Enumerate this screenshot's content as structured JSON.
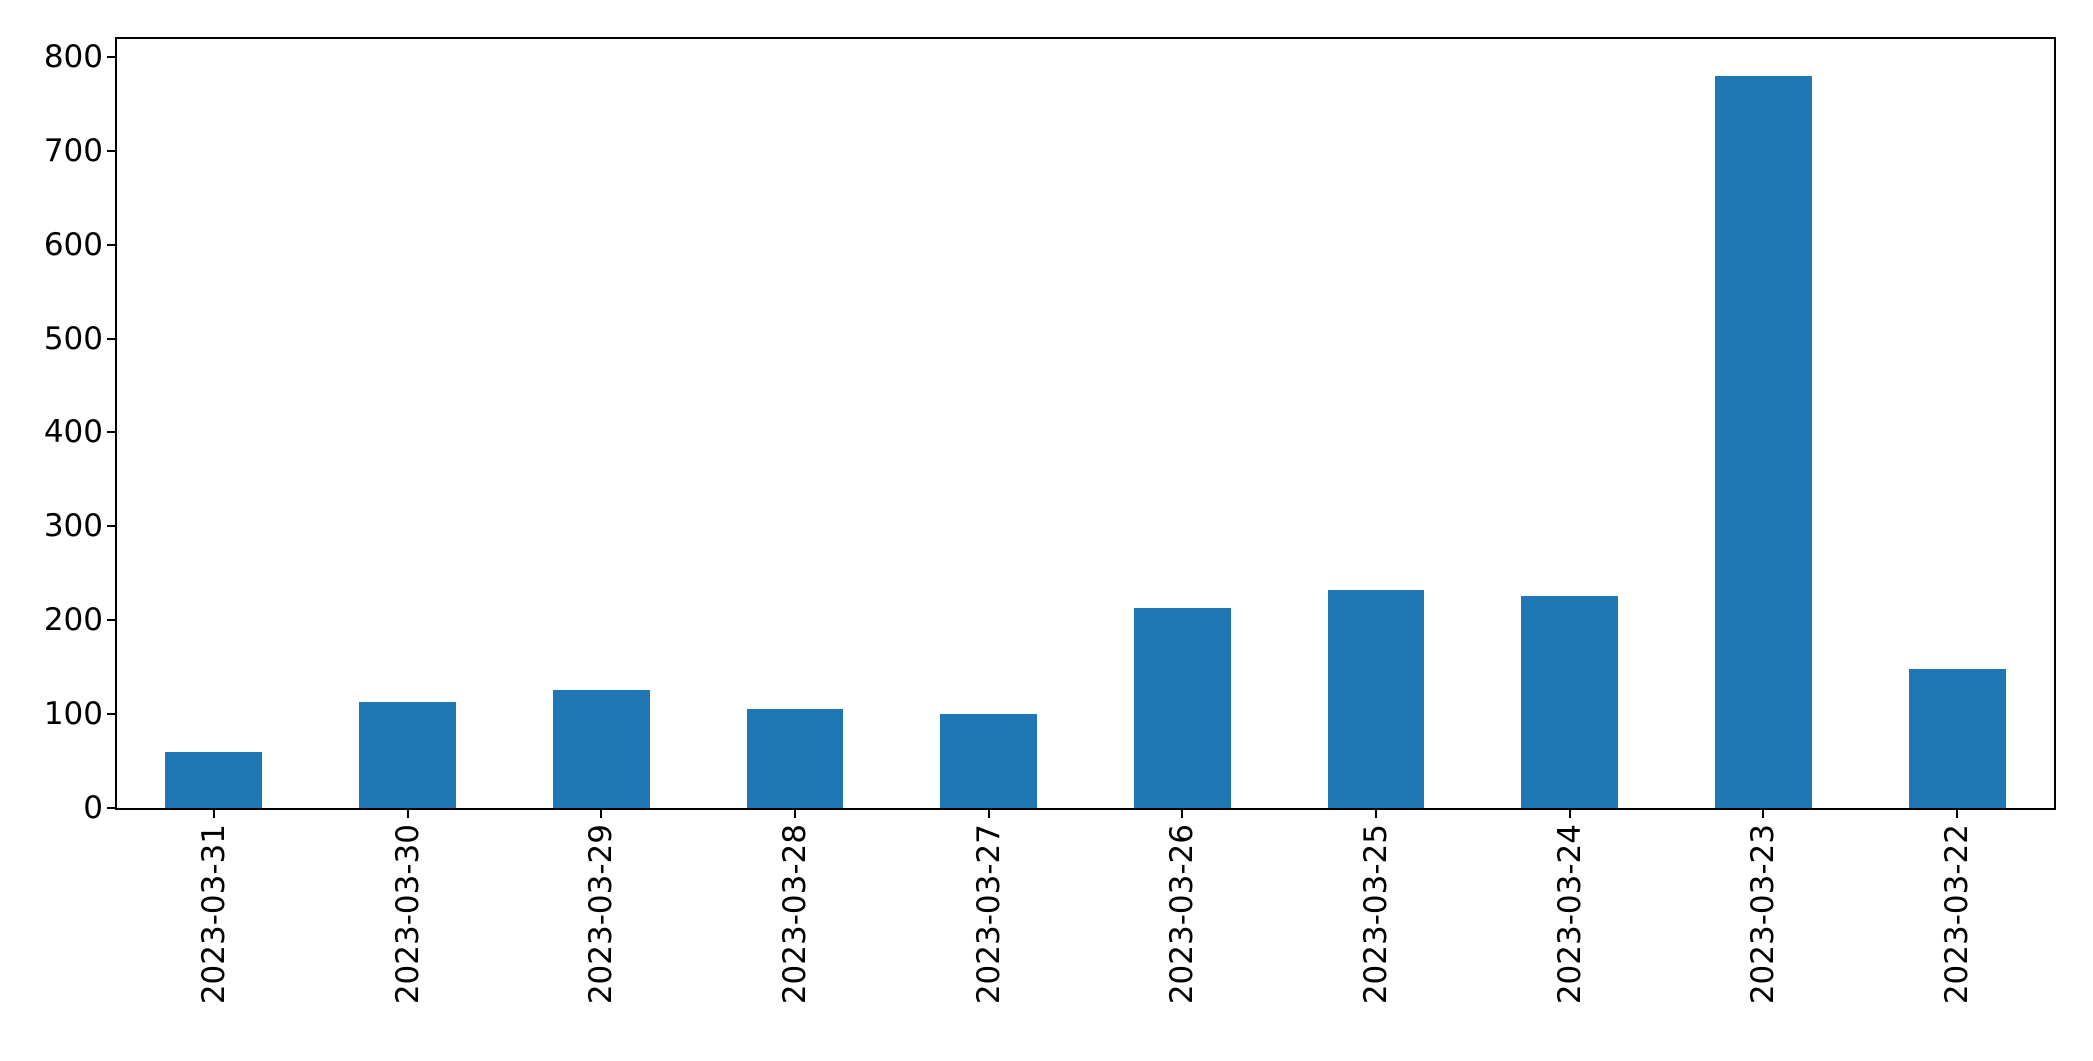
{
  "chart_data": {
    "type": "bar",
    "title": "",
    "xlabel": "",
    "ylabel": "",
    "categories": [
      "2023-03-31",
      "2023-03-30",
      "2023-03-29",
      "2023-03-28",
      "2023-03-27",
      "2023-03-26",
      "2023-03-25",
      "2023-03-24",
      "2023-03-23",
      "2023-03-22"
    ],
    "values": [
      60,
      113,
      126,
      105,
      100,
      213,
      232,
      226,
      780,
      148
    ],
    "yticks": [
      0,
      100,
      200,
      300,
      400,
      500,
      600,
      700,
      800
    ],
    "ylim": [
      0,
      819
    ],
    "xtick_rotation": 90,
    "bar_width_fraction": 0.5,
    "grid": false,
    "legend": "none",
    "bar_color": "#1f77b4",
    "background_color": "#ffffff",
    "axis_color": "#000000",
    "text_color": "#000000"
  }
}
